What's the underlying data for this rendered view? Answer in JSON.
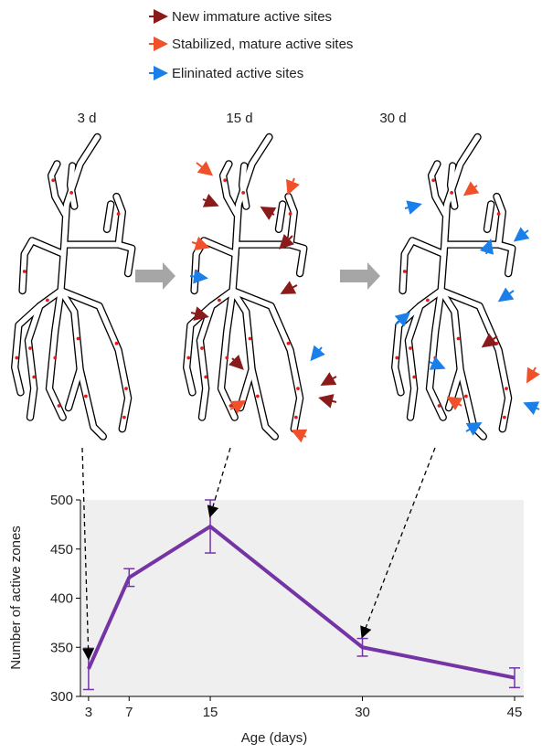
{
  "diagram": {
    "legend": [
      "New immature active sites",
      "Stabilized, mature active sites",
      "Elininated active sites"
    ],
    "panels": [
      "3 d",
      "15 d",
      "30 d"
    ]
  },
  "chart_data": {
    "type": "line",
    "x": [
      3,
      7,
      15,
      30,
      45
    ],
    "series": [
      {
        "color": "#7434a6",
        "values": [
          328,
          421,
          473,
          350,
          319
        ],
        "errors": [
          21,
          9,
          27,
          9,
          10
        ]
      }
    ],
    "xlim": [
      2.2,
      45.9
    ],
    "xticks": [
      3,
      7,
      15,
      30,
      45
    ],
    "ylim": [
      300,
      500
    ],
    "yticks": [
      300,
      350,
      400,
      450,
      500
    ],
    "xlabel": "Age (days)",
    "ylabel": "Number of active zones"
  }
}
